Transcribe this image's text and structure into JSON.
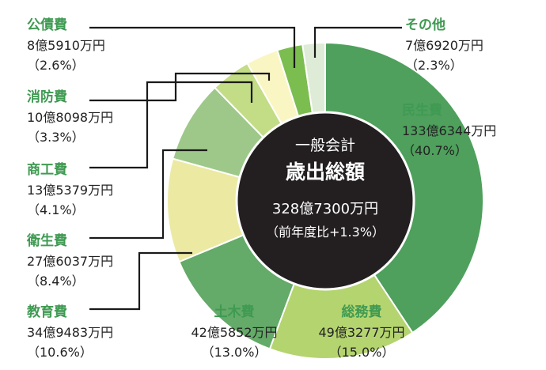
{
  "chart_data": {
    "type": "pie",
    "title": "",
    "center": {
      "line1": "一般会計",
      "line2": "歳出総額",
      "total": "328億7300万円",
      "change": "（前年度比+1.3%）"
    },
    "slices": [
      {
        "name": "民生費",
        "value_text": "133億6344万円",
        "percent_text": "（40.7%）",
        "percent": 40.7,
        "color": "#4ea05c"
      },
      {
        "name": "総務費",
        "value_text": "49億3277万円",
        "percent_text": "（15.0%）",
        "percent": 15.0,
        "color": "#b4d46f"
      },
      {
        "name": "土木費",
        "value_text": "42億5852万円",
        "percent_text": "（13.0%）",
        "percent": 13.0,
        "color": "#64aa68"
      },
      {
        "name": "教育費",
        "value_text": "34億9483万円",
        "percent_text": "（10.6%）",
        "percent": 10.6,
        "color": "#ece9a3"
      },
      {
        "name": "衛生費",
        "value_text": "27億6037万円",
        "percent_text": "（8.4%）",
        "percent": 8.4,
        "color": "#9dc88a"
      },
      {
        "name": "商工費",
        "value_text": "13億5379万円",
        "percent_text": "（4.1%）",
        "percent": 4.1,
        "color": "#c3dc86"
      },
      {
        "name": "消防費",
        "value_text": "10億8098万円",
        "percent_text": "（3.3%）",
        "percent": 3.3,
        "color": "#faf6c3"
      },
      {
        "name": "公債費",
        "value_text": "8億5910万円",
        "percent_text": "（2.6%）",
        "percent": 2.6,
        "color": "#7cbd50"
      },
      {
        "name": "その他",
        "value_text": "7億6920万円",
        "percent_text": "（2.3%）",
        "percent": 2.3,
        "color": "#deebd6"
      }
    ],
    "start_angle_deg": 0,
    "direction": "clockwise",
    "center_color": "#231f20",
    "leader_color": "#1a1a1a"
  }
}
